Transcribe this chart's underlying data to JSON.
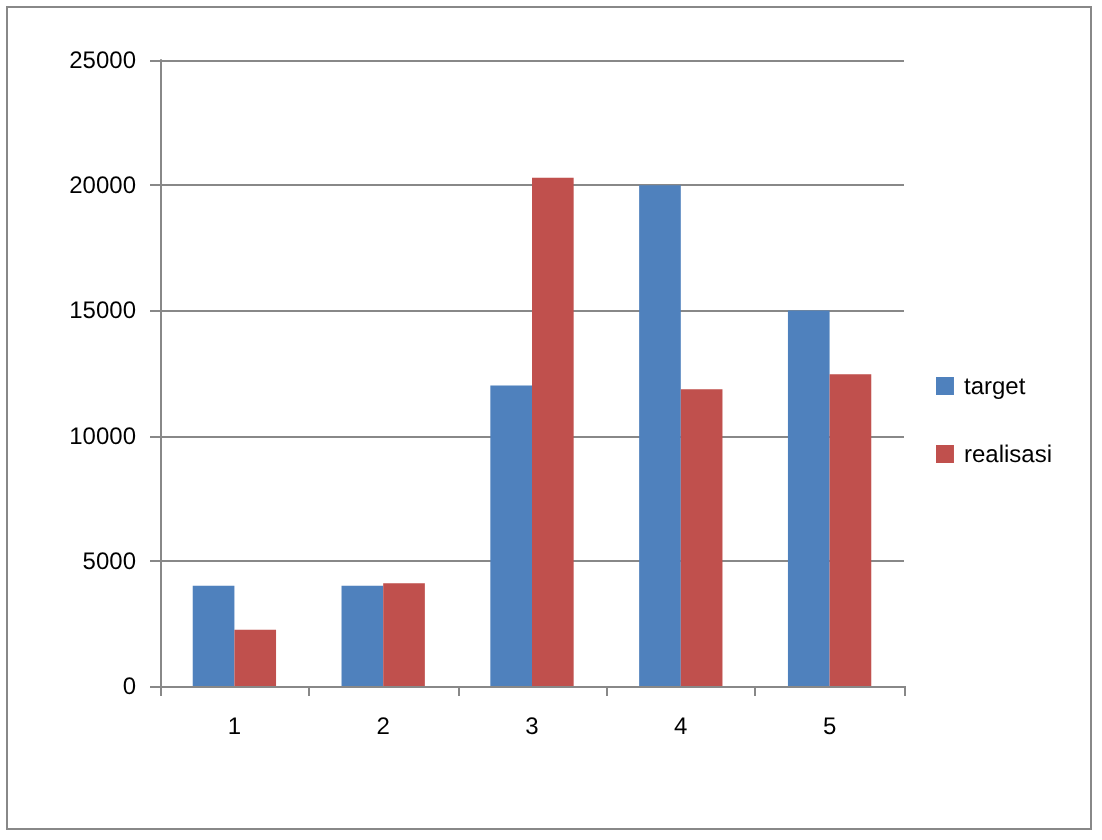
{
  "chart_data": {
    "type": "bar",
    "categories": [
      "1",
      "2",
      "3",
      "4",
      "5"
    ],
    "series": [
      {
        "name": "target",
        "color": "#4f81bd",
        "values": [
          4000,
          4000,
          12000,
          20000,
          15000
        ]
      },
      {
        "name": "realisasi",
        "color": "#c0504d",
        "values": [
          2250,
          4100,
          20300,
          11850,
          12450
        ]
      }
    ],
    "ylim": [
      0,
      25000
    ],
    "yticks": [
      0,
      5000,
      10000,
      15000,
      20000,
      25000
    ],
    "grid": "y",
    "legend": "right"
  }
}
